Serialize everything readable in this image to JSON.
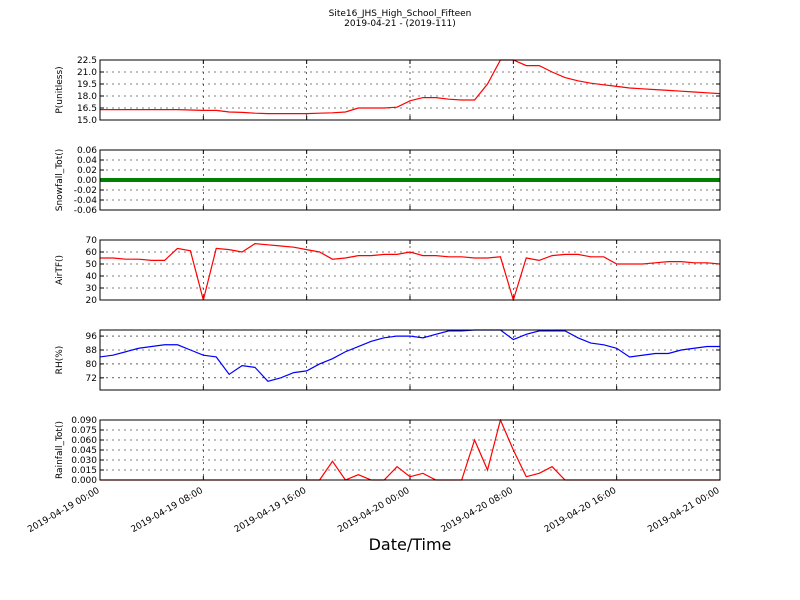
{
  "chart_data": [
    {
      "type": "line",
      "title": "Site16_JHS_High_School_Fifteen",
      "subtitle": "2019-04-21 - (2019-111)",
      "ylabel": "P(unitless)",
      "x": [
        "2019-04-19 00:00",
        "2019-04-19 01:00",
        "2019-04-19 02:00",
        "2019-04-19 03:00",
        "2019-04-19 04:00",
        "2019-04-19 05:00",
        "2019-04-19 06:00",
        "2019-04-19 07:00",
        "2019-04-19 08:00",
        "2019-04-19 09:00",
        "2019-04-19 10:00",
        "2019-04-19 11:00",
        "2019-04-19 12:00",
        "2019-04-19 13:00",
        "2019-04-19 14:00",
        "2019-04-19 15:00",
        "2019-04-19 16:00",
        "2019-04-19 17:00",
        "2019-04-19 18:00",
        "2019-04-19 19:00",
        "2019-04-19 20:00",
        "2019-04-19 21:00",
        "2019-04-19 22:00",
        "2019-04-19 23:00",
        "2019-04-20 00:00",
        "2019-04-20 01:00",
        "2019-04-20 02:00",
        "2019-04-20 03:00",
        "2019-04-20 04:00",
        "2019-04-20 05:00",
        "2019-04-20 06:00",
        "2019-04-20 07:00",
        "2019-04-20 08:00",
        "2019-04-20 09:00",
        "2019-04-20 10:00",
        "2019-04-20 11:00",
        "2019-04-20 12:00",
        "2019-04-20 13:00",
        "2019-04-20 14:00",
        "2019-04-20 15:00",
        "2019-04-20 16:00",
        "2019-04-20 17:00",
        "2019-04-20 18:00",
        "2019-04-20 19:00",
        "2019-04-20 20:00",
        "2019-04-20 21:00",
        "2019-04-20 22:00",
        "2019-04-20 23:00",
        "2019-04-21 00:00"
      ],
      "series": [
        {
          "color": "#ff0000",
          "values": [
            16.3,
            16.3,
            16.3,
            16.3,
            16.3,
            16.3,
            16.3,
            16.25,
            16.2,
            16.2,
            16.0,
            15.95,
            15.85,
            15.8,
            15.8,
            15.8,
            15.8,
            15.85,
            15.9,
            16.0,
            16.5,
            16.5,
            16.5,
            16.6,
            17.4,
            17.8,
            17.8,
            17.6,
            17.5,
            17.5,
            19.5,
            22.5,
            22.5,
            21.8,
            21.8,
            21.0,
            20.3,
            19.9,
            19.6,
            19.4,
            19.2,
            19.0,
            18.9,
            18.8,
            18.7,
            18.6,
            18.5,
            18.4,
            18.3
          ]
        }
      ],
      "xlim": [
        "2019-04-19 00:00",
        "2019-04-21 00:00"
      ],
      "xticks": [
        "2019-04-19 00:00",
        "2019-04-19 08:00",
        "2019-04-19 16:00",
        "2019-04-20 00:00",
        "2019-04-20 08:00",
        "2019-04-20 16:00",
        "2019-04-21 00:00"
      ],
      "ylim": [
        15,
        22.5
      ],
      "yticks": [
        {
          "value": 15,
          "label": "15.0"
        },
        {
          "value": 16.5,
          "label": "16.5"
        },
        {
          "value": 18,
          "label": "18.0"
        },
        {
          "value": 19.5,
          "label": "19.5"
        },
        {
          "value": 21,
          "label": "21.0"
        },
        {
          "value": 22.5,
          "label": "22.5"
        }
      ],
      "grid": true
    },
    {
      "type": "line",
      "ylabel": "Snowfall_Tot()",
      "x": [
        "2019-04-19 00:00",
        "2019-04-19 01:00",
        "2019-04-19 02:00",
        "2019-04-19 03:00",
        "2019-04-19 04:00",
        "2019-04-19 05:00",
        "2019-04-19 06:00",
        "2019-04-19 07:00",
        "2019-04-19 08:00",
        "2019-04-19 09:00",
        "2019-04-19 10:00",
        "2019-04-19 11:00",
        "2019-04-19 12:00",
        "2019-04-19 13:00",
        "2019-04-19 14:00",
        "2019-04-19 15:00",
        "2019-04-19 16:00",
        "2019-04-19 17:00",
        "2019-04-19 18:00",
        "2019-04-19 19:00",
        "2019-04-19 20:00",
        "2019-04-19 21:00",
        "2019-04-19 22:00",
        "2019-04-19 23:00",
        "2019-04-20 00:00",
        "2019-04-20 01:00",
        "2019-04-20 02:00",
        "2019-04-20 03:00",
        "2019-04-20 04:00",
        "2019-04-20 05:00",
        "2019-04-20 06:00",
        "2019-04-20 07:00",
        "2019-04-20 08:00",
        "2019-04-20 09:00",
        "2019-04-20 10:00",
        "2019-04-20 11:00",
        "2019-04-20 12:00",
        "2019-04-20 13:00",
        "2019-04-20 14:00",
        "2019-04-20 15:00",
        "2019-04-20 16:00",
        "2019-04-20 17:00",
        "2019-04-20 18:00",
        "2019-04-20 19:00",
        "2019-04-20 20:00",
        "2019-04-20 21:00",
        "2019-04-20 22:00",
        "2019-04-20 23:00",
        "2019-04-21 00:00"
      ],
      "series": [
        {
          "color": "#008000",
          "values": [
            0,
            0,
            0,
            0,
            0,
            0,
            0,
            0,
            0,
            0,
            0,
            0,
            0,
            0,
            0,
            0,
            0,
            0,
            0,
            0,
            0,
            0,
            0,
            0,
            0,
            0,
            0,
            0,
            0,
            0,
            0,
            0,
            0,
            0,
            0,
            0,
            0,
            0,
            0,
            0,
            0,
            0,
            0,
            0,
            0,
            0,
            0,
            0,
            0
          ]
        }
      ],
      "xlim": [
        "2019-04-19 00:00",
        "2019-04-21 00:00"
      ],
      "xticks": [
        "2019-04-19 00:00",
        "2019-04-19 08:00",
        "2019-04-19 16:00",
        "2019-04-20 00:00",
        "2019-04-20 08:00",
        "2019-04-20 16:00",
        "2019-04-21 00:00"
      ],
      "ylim": [
        -0.06,
        0.06
      ],
      "yticks": [
        -0.06,
        -0.04,
        -0.02,
        {
          "value": 0,
          "label": "0.00"
        },
        0.02,
        0.04,
        0.06
      ],
      "grid": true
    },
    {
      "type": "line",
      "ylabel": "AirTF()",
      "x": [
        "2019-04-19 00:00",
        "2019-04-19 01:00",
        "2019-04-19 02:00",
        "2019-04-19 03:00",
        "2019-04-19 04:00",
        "2019-04-19 05:00",
        "2019-04-19 06:00",
        "2019-04-19 07:00",
        "2019-04-19 08:00",
        "2019-04-19 09:00",
        "2019-04-19 10:00",
        "2019-04-19 11:00",
        "2019-04-19 12:00",
        "2019-04-19 13:00",
        "2019-04-19 14:00",
        "2019-04-19 15:00",
        "2019-04-19 16:00",
        "2019-04-19 17:00",
        "2019-04-19 18:00",
        "2019-04-19 19:00",
        "2019-04-19 20:00",
        "2019-04-19 21:00",
        "2019-04-19 22:00",
        "2019-04-19 23:00",
        "2019-04-20 00:00",
        "2019-04-20 01:00",
        "2019-04-20 02:00",
        "2019-04-20 03:00",
        "2019-04-20 04:00",
        "2019-04-20 05:00",
        "2019-04-20 06:00",
        "2019-04-20 07:00",
        "2019-04-20 08:00",
        "2019-04-20 09:00",
        "2019-04-20 10:00",
        "2019-04-20 11:00",
        "2019-04-20 12:00",
        "2019-04-20 13:00",
        "2019-04-20 14:00",
        "2019-04-20 15:00",
        "2019-04-20 16:00",
        "2019-04-20 17:00",
        "2019-04-20 18:00",
        "2019-04-20 19:00",
        "2019-04-20 20:00",
        "2019-04-20 21:00",
        "2019-04-20 22:00",
        "2019-04-20 23:00",
        "2019-04-21 00:00"
      ],
      "series": [
        {
          "color": "#ff0000",
          "values": [
            55,
            55,
            54,
            54,
            53,
            53,
            63,
            61,
            20,
            63,
            62,
            60,
            67,
            66,
            65,
            64,
            62,
            60,
            54,
            55,
            57,
            57,
            58,
            58,
            60,
            57,
            57,
            56,
            56,
            55,
            55,
            56,
            20,
            55,
            53,
            57,
            58,
            58,
            56,
            56,
            50,
            50,
            50,
            51,
            52,
            52,
            51,
            51,
            50
          ]
        }
      ],
      "xlim": [
        "2019-04-19 00:00",
        "2019-04-21 00:00"
      ],
      "xticks": [
        "2019-04-19 00:00",
        "2019-04-19 08:00",
        "2019-04-19 16:00",
        "2019-04-20 00:00",
        "2019-04-20 08:00",
        "2019-04-20 16:00",
        "2019-04-21 00:00"
      ],
      "ylim": [
        20,
        70
      ],
      "yticks": [
        20,
        30,
        40,
        50,
        60,
        70
      ],
      "grid": true
    },
    {
      "type": "line",
      "ylabel": "RH(%)",
      "x": [
        "2019-04-19 00:00",
        "2019-04-19 01:00",
        "2019-04-19 02:00",
        "2019-04-19 03:00",
        "2019-04-19 04:00",
        "2019-04-19 05:00",
        "2019-04-19 06:00",
        "2019-04-19 07:00",
        "2019-04-19 08:00",
        "2019-04-19 09:00",
        "2019-04-19 10:00",
        "2019-04-19 11:00",
        "2019-04-19 12:00",
        "2019-04-19 13:00",
        "2019-04-19 14:00",
        "2019-04-19 15:00",
        "2019-04-19 16:00",
        "2019-04-19 17:00",
        "2019-04-19 18:00",
        "2019-04-19 19:00",
        "2019-04-19 20:00",
        "2019-04-19 21:00",
        "2019-04-19 22:00",
        "2019-04-19 23:00",
        "2019-04-20 00:00",
        "2019-04-20 01:00",
        "2019-04-20 02:00",
        "2019-04-20 03:00",
        "2019-04-20 04:00",
        "2019-04-20 05:00",
        "2019-04-20 06:00",
        "2019-04-20 07:00",
        "2019-04-20 08:00",
        "2019-04-20 09:00",
        "2019-04-20 10:00",
        "2019-04-20 11:00",
        "2019-04-20 12:00",
        "2019-04-20 13:00",
        "2019-04-20 14:00",
        "2019-04-20 15:00",
        "2019-04-20 16:00",
        "2019-04-20 17:00",
        "2019-04-20 18:00",
        "2019-04-20 19:00",
        "2019-04-20 20:00",
        "2019-04-20 21:00",
        "2019-04-20 22:00",
        "2019-04-20 23:00",
        "2019-04-21 00:00"
      ],
      "series": [
        {
          "color": "#0000ff",
          "values": [
            84,
            85,
            87,
            89,
            90,
            91,
            91,
            88,
            85,
            84,
            74,
            79,
            78,
            70,
            72,
            75,
            76,
            80,
            83,
            87,
            90,
            93,
            95,
            96,
            96,
            95,
            97,
            99,
            99,
            99.5,
            99.5,
            99.5,
            94,
            97,
            99,
            99,
            99,
            95,
            92,
            91,
            89,
            84,
            85,
            86,
            86,
            88,
            89,
            90,
            90
          ]
        }
      ],
      "xlim": [
        "2019-04-19 00:00",
        "2019-04-21 00:00"
      ],
      "xticks": [
        "2019-04-19 00:00",
        "2019-04-19 08:00",
        "2019-04-19 16:00",
        "2019-04-20 00:00",
        "2019-04-20 08:00",
        "2019-04-20 16:00",
        "2019-04-21 00:00"
      ],
      "ylim": [
        65,
        99.5
      ],
      "yticks": [
        72,
        80,
        88,
        96
      ],
      "grid": true
    },
    {
      "type": "line",
      "ylabel": "Rainfall_Tot()",
      "xlabel": "Date/Time",
      "x": [
        "2019-04-19 00:00",
        "2019-04-19 01:00",
        "2019-04-19 02:00",
        "2019-04-19 03:00",
        "2019-04-19 04:00",
        "2019-04-19 05:00",
        "2019-04-19 06:00",
        "2019-04-19 07:00",
        "2019-04-19 08:00",
        "2019-04-19 09:00",
        "2019-04-19 10:00",
        "2019-04-19 11:00",
        "2019-04-19 12:00",
        "2019-04-19 13:00",
        "2019-04-19 14:00",
        "2019-04-19 15:00",
        "2019-04-19 16:00",
        "2019-04-19 17:00",
        "2019-04-19 18:00",
        "2019-04-19 19:00",
        "2019-04-19 20:00",
        "2019-04-19 21:00",
        "2019-04-19 22:00",
        "2019-04-19 23:00",
        "2019-04-20 00:00",
        "2019-04-20 01:00",
        "2019-04-20 02:00",
        "2019-04-20 03:00",
        "2019-04-20 04:00",
        "2019-04-20 05:00",
        "2019-04-20 06:00",
        "2019-04-20 07:00",
        "2019-04-20 08:00",
        "2019-04-20 09:00",
        "2019-04-20 10:00",
        "2019-04-20 11:00",
        "2019-04-20 12:00",
        "2019-04-20 13:00",
        "2019-04-20 14:00",
        "2019-04-20 15:00",
        "2019-04-20 16:00",
        "2019-04-20 17:00",
        "2019-04-20 18:00",
        "2019-04-20 19:00",
        "2019-04-20 20:00",
        "2019-04-20 21:00",
        "2019-04-20 22:00",
        "2019-04-20 23:00",
        "2019-04-21 00:00"
      ],
      "series": [
        {
          "color": "#ff0000",
          "values": [
            0,
            0,
            0,
            0,
            0,
            0,
            0,
            0,
            0,
            0,
            0,
            0,
            0,
            0,
            0,
            0,
            0,
            0,
            0.028,
            0,
            0.008,
            0,
            0,
            0.02,
            0.005,
            0.01,
            0,
            0,
            0,
            0.06,
            0.015,
            0.09,
            0.045,
            0.005,
            0.01,
            0.02,
            0,
            0,
            0,
            0,
            0,
            0,
            0,
            0,
            0,
            0,
            0,
            0,
            0
          ]
        }
      ],
      "xlim": [
        "2019-04-19 00:00",
        "2019-04-21 00:00"
      ],
      "xticks": [
        "2019-04-19 00:00",
        "2019-04-19 08:00",
        "2019-04-19 16:00",
        "2019-04-20 00:00",
        "2019-04-20 08:00",
        "2019-04-20 16:00",
        "2019-04-21 00:00"
      ],
      "ylim": [
        0,
        0.09
      ],
      "yticks": [
        {
          "value": 0,
          "label": "0.000"
        },
        0.015,
        {
          "value": 0.03,
          "label": "0.030"
        },
        0.045,
        {
          "value": 0.06,
          "label": "0.060"
        },
        0.075,
        {
          "value": 0.09,
          "label": "0.090"
        }
      ],
      "grid": true
    }
  ]
}
